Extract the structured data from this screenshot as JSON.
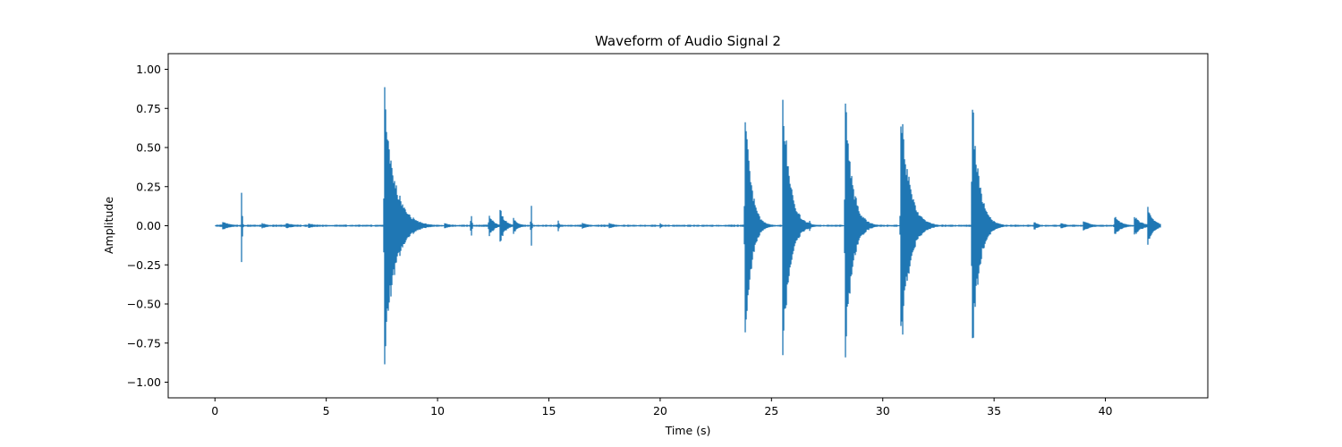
{
  "chart_data": {
    "type": "line",
    "title": "Waveform of Audio Signal 2",
    "xlabel": "Time (s)",
    "ylabel": "Amplitude",
    "xlim": [
      -2.1,
      44.6
    ],
    "ylim": [
      -1.1,
      1.1
    ],
    "xticks": [
      0,
      5,
      10,
      15,
      20,
      25,
      30,
      35,
      40
    ],
    "yticks": [
      -1.0,
      -0.75,
      -0.5,
      -0.25,
      0.0,
      0.25,
      0.5,
      0.75,
      1.0
    ],
    "xtick_labels": [
      "0",
      "5",
      "10",
      "15",
      "20",
      "25",
      "30",
      "35",
      "40"
    ],
    "ytick_labels": [
      "−1.00",
      "−0.75",
      "−0.50",
      "−0.25",
      "0.00",
      "0.25",
      "0.50",
      "0.75",
      "1.00"
    ],
    "grid": false,
    "series": [
      {
        "color": "#1f77b4",
        "duration": 42.5,
        "events": [
          {
            "t": 0.35,
            "amp": 0.03,
            "decay": 0.35
          },
          {
            "t": 1.2,
            "amp": 0.42,
            "decay": 0.02
          },
          {
            "t": 2.1,
            "amp": 0.02,
            "decay": 0.3
          },
          {
            "t": 3.2,
            "amp": 0.02,
            "decay": 0.4
          },
          {
            "t": 4.2,
            "amp": 0.02,
            "decay": 0.3
          },
          {
            "t": 7.6,
            "amp": 0.98,
            "decay": 0.45
          },
          {
            "t": 9.0,
            "amp": 0.02,
            "decay": 0.3
          },
          {
            "t": 10.3,
            "amp": 0.02,
            "decay": 0.3
          },
          {
            "t": 11.5,
            "amp": 0.18,
            "decay": 0.03
          },
          {
            "t": 12.3,
            "amp": 0.09,
            "decay": 0.2
          },
          {
            "t": 12.8,
            "amp": 0.13,
            "decay": 0.2
          },
          {
            "t": 13.4,
            "amp": 0.06,
            "decay": 0.2
          },
          {
            "t": 14.2,
            "amp": 0.34,
            "decay": 0.02
          },
          {
            "t": 15.4,
            "amp": 0.06,
            "decay": 0.05
          },
          {
            "t": 16.5,
            "amp": 0.02,
            "decay": 0.3
          },
          {
            "t": 17.7,
            "amp": 0.02,
            "decay": 0.3
          },
          {
            "t": 20.0,
            "amp": 0.02,
            "decay": 0.1
          },
          {
            "t": 23.8,
            "amp": 0.96,
            "decay": 0.25
          },
          {
            "t": 25.5,
            "amp": 0.98,
            "decay": 0.3
          },
          {
            "t": 26.7,
            "amp": 0.06,
            "decay": 0.05
          },
          {
            "t": 28.3,
            "amp": 0.97,
            "decay": 0.3
          },
          {
            "t": 30.8,
            "amp": 0.96,
            "decay": 0.35
          },
          {
            "t": 34.0,
            "amp": 0.96,
            "decay": 0.3
          },
          {
            "t": 36.8,
            "amp": 0.03,
            "decay": 0.2
          },
          {
            "t": 38.0,
            "amp": 0.02,
            "decay": 0.3
          },
          {
            "t": 39.0,
            "amp": 0.04,
            "decay": 0.3
          },
          {
            "t": 40.4,
            "amp": 0.07,
            "decay": 0.3
          },
          {
            "t": 41.3,
            "amp": 0.07,
            "decay": 0.3
          },
          {
            "t": 41.9,
            "amp": 0.13,
            "decay": 0.25
          }
        ]
      }
    ]
  }
}
